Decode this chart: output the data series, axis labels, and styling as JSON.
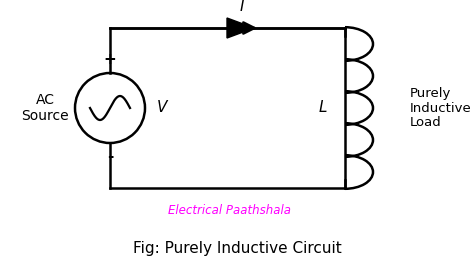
{
  "title": "Fig: Purely Inductive Circuit",
  "watermark": "Electrical Paathshala",
  "watermark_color": "#FF00FF",
  "bg_color": "#FFFFFF",
  "line_color": "#000000",
  "ac_source_label": "AC\nSource",
  "voltage_label": "V",
  "current_label": "I",
  "inductor_label": "L",
  "load_label": "Purely\nInductive\nLoad",
  "plus_label": "+",
  "minus_label": "-",
  "circuit_lw": 1.8,
  "title_fontsize": 11,
  "watermark_fontsize": 8.5,
  "n_loops": 5
}
